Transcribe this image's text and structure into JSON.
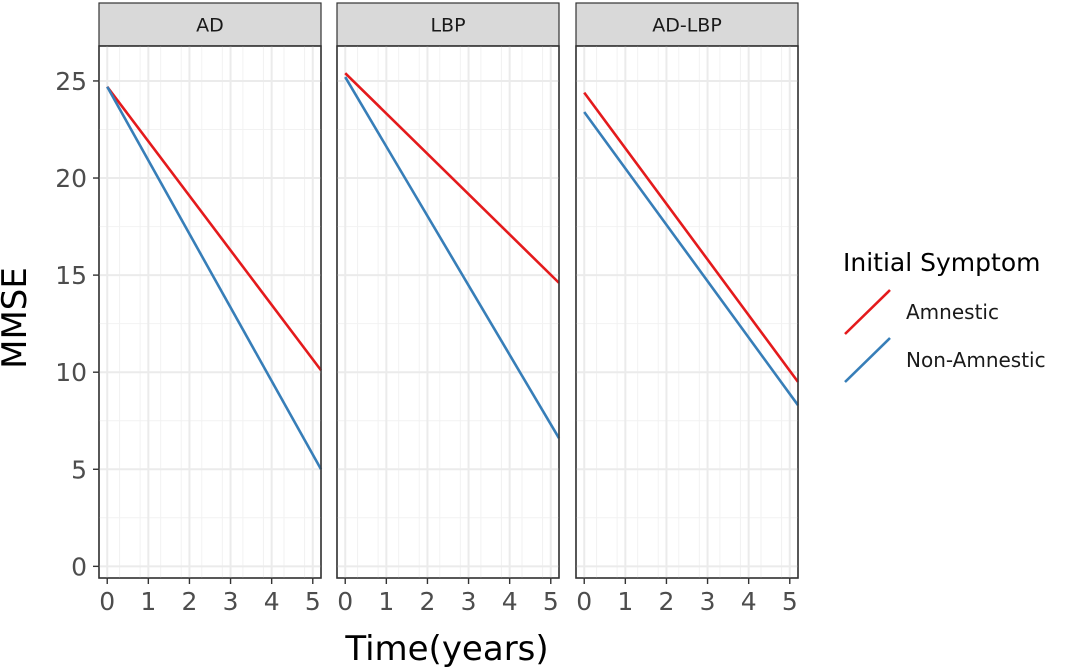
{
  "chart_data": {
    "type": "line",
    "facets": [
      {
        "strip": "AD",
        "series": [
          {
            "name": "Amnestic",
            "x": [
              0,
              5.2
            ],
            "y": [
              24.7,
              10.1
            ]
          },
          {
            "name": "Non-Amnestic",
            "x": [
              0,
              5.2
            ],
            "y": [
              24.7,
              5.0
            ]
          }
        ]
      },
      {
        "strip": "LBP",
        "series": [
          {
            "name": "Amnestic",
            "x": [
              0,
              5.2
            ],
            "y": [
              25.4,
              14.6
            ]
          },
          {
            "name": "Non-Amnestic",
            "x": [
              0,
              5.2
            ],
            "y": [
              25.2,
              6.6
            ]
          }
        ]
      },
      {
        "strip": "AD-LBP",
        "series": [
          {
            "name": "Amnestic",
            "x": [
              0,
              5.2
            ],
            "y": [
              24.4,
              9.5
            ]
          },
          {
            "name": "Non-Amnestic",
            "x": [
              0,
              5.2
            ],
            "y": [
              23.4,
              8.3
            ]
          }
        ]
      }
    ],
    "xlabel": "Time(years)",
    "ylabel": "MMSE",
    "xticks": [
      0,
      1,
      2,
      3,
      4,
      5
    ],
    "yticks": [
      0,
      5,
      10,
      15,
      20,
      25
    ],
    "xlim": [
      -0.2,
      5.2
    ],
    "ylim": [
      -0.6,
      26.8
    ],
    "grid": true,
    "legend": {
      "title": "Initial Symptom",
      "position": "right",
      "entries": [
        "Amnestic",
        "Non-Amnestic"
      ]
    },
    "colors": {
      "Amnestic": "#e41a1c",
      "Non-Amnestic": "#377eb8"
    }
  }
}
